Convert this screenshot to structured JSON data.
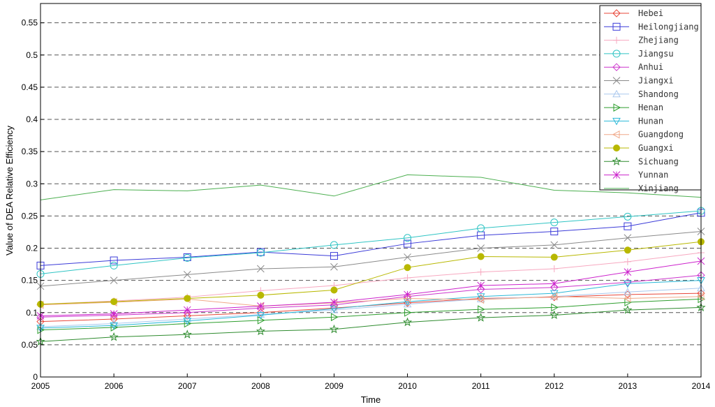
{
  "chart_data": {
    "type": "line",
    "xlabel": "Time",
    "ylabel": "Value of DEA Relative Efficiency",
    "x": [
      2005,
      2006,
      2007,
      2008,
      2009,
      2010,
      2011,
      2012,
      2013,
      2014
    ],
    "xlim": [
      2005,
      2014
    ],
    "ylim": [
      0,
      0.58
    ],
    "yticks": [
      0,
      0.05,
      0.1,
      0.15,
      0.2,
      0.25,
      0.3,
      0.35,
      0.4,
      0.45,
      0.5,
      0.55
    ],
    "ytick_labels": [
      "0",
      "0.05",
      "0.1",
      "0.15",
      "0.2",
      "0.25",
      "0.3",
      "0.35",
      "0.4",
      "0.45",
      "0.5",
      "0.55"
    ],
    "xtick_labels": [
      "2005",
      "2006",
      "2007",
      "2008",
      "2009",
      "2010",
      "2011",
      "2012",
      "2013",
      "2014"
    ],
    "grid": "horizontal-dashed",
    "legend_position": "top-right",
    "series": [
      {
        "name": "Hebei",
        "color": "#e8473a",
        "marker": "diamond",
        "values": [
          0.086,
          0.09,
          0.095,
          0.1,
          0.107,
          0.115,
          0.122,
          0.124,
          0.128,
          0.13
        ]
      },
      {
        "name": "Heilongjiang",
        "color": "#3b3bd8",
        "marker": "square",
        "values": [
          0.173,
          0.181,
          0.186,
          0.194,
          0.188,
          0.207,
          0.22,
          0.226,
          0.234,
          0.255
        ]
      },
      {
        "name": "Zhejiang",
        "color": "#f7a8c0",
        "marker": "plus",
        "values": [
          0.113,
          0.118,
          0.124,
          0.134,
          0.142,
          0.154,
          0.163,
          0.168,
          0.179,
          0.193
        ]
      },
      {
        "name": "Jiangsu",
        "color": "#2fc4c4",
        "marker": "circle",
        "values": [
          0.16,
          0.173,
          0.185,
          0.193,
          0.205,
          0.216,
          0.231,
          0.24,
          0.249,
          0.258
        ]
      },
      {
        "name": "Anhui",
        "color": "#cc33cc",
        "marker": "diamond",
        "values": [
          0.093,
          0.096,
          0.1,
          0.107,
          0.112,
          0.125,
          0.136,
          0.139,
          0.147,
          0.158
        ]
      },
      {
        "name": "Jiangxi",
        "color": "#8a8a8a",
        "marker": "x",
        "values": [
          0.141,
          0.15,
          0.159,
          0.168,
          0.171,
          0.186,
          0.2,
          0.205,
          0.216,
          0.226
        ]
      },
      {
        "name": "Shandong",
        "color": "#aac8ee",
        "marker": "triangle-up",
        "values": [
          0.078,
          0.083,
          0.09,
          0.097,
          0.104,
          0.113,
          0.121,
          0.125,
          0.132,
          0.138
        ]
      },
      {
        "name": "Henan",
        "color": "#2e9e2e",
        "marker": "triangle-right",
        "values": [
          0.073,
          0.077,
          0.083,
          0.088,
          0.093,
          0.1,
          0.105,
          0.108,
          0.116,
          0.121
        ]
      },
      {
        "name": "Hunan",
        "color": "#2ab8d8",
        "marker": "triangle-down",
        "values": [
          0.076,
          0.08,
          0.087,
          0.096,
          0.106,
          0.117,
          0.125,
          0.13,
          0.145,
          0.15
        ]
      },
      {
        "name": "Guangdong",
        "color": "#f0a888",
        "marker": "triangle-left",
        "values": [
          0.112,
          0.116,
          0.121,
          0.11,
          0.115,
          0.122,
          0.12,
          0.125,
          0.122,
          0.125
        ]
      },
      {
        "name": "Guangxi",
        "color": "#b8b800",
        "marker": "dot",
        "values": [
          0.113,
          0.117,
          0.122,
          0.127,
          0.135,
          0.17,
          0.187,
          0.186,
          0.197,
          0.21
        ]
      },
      {
        "name": "Sichuang",
        "color": "#2e8b2e",
        "marker": "star",
        "values": [
          0.055,
          0.062,
          0.066,
          0.071,
          0.074,
          0.085,
          0.092,
          0.096,
          0.104,
          0.108
        ]
      },
      {
        "name": "Yunnan",
        "color": "#cc22cc",
        "marker": "asterisk",
        "values": [
          0.095,
          0.098,
          0.104,
          0.11,
          0.116,
          0.128,
          0.142,
          0.145,
          0.163,
          0.18
        ]
      },
      {
        "name": "Xinjiang",
        "color": "#4caf50",
        "marker": "none",
        "values": [
          0.275,
          0.291,
          0.289,
          0.298,
          0.281,
          0.314,
          0.31,
          0.29,
          0.286,
          0.279
        ]
      }
    ]
  }
}
